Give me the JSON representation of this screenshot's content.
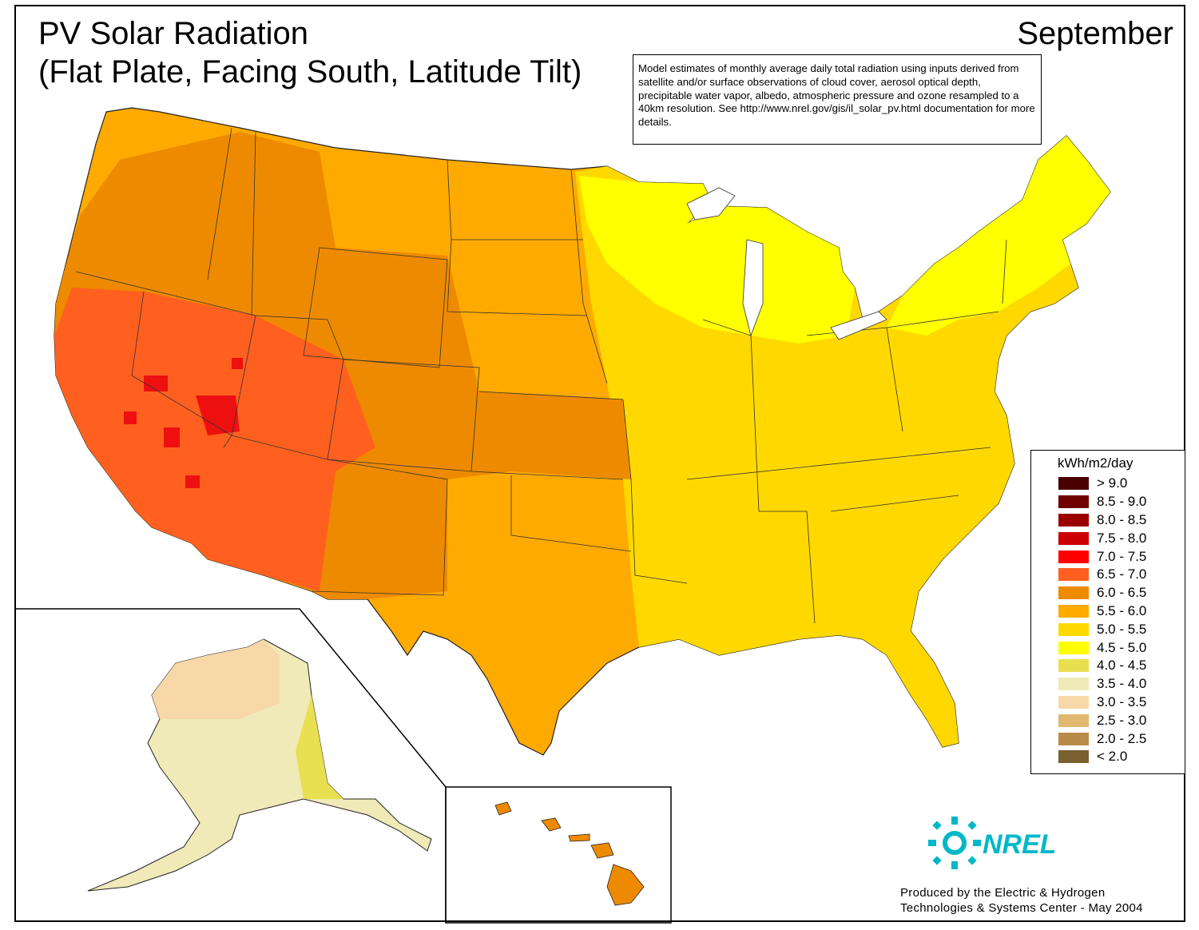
{
  "title": {
    "line1": "PV Solar Radiation",
    "line2": "(Flat Plate, Facing South, Latitude Tilt)"
  },
  "month": "September",
  "note": "Model estimates of monthly average daily total radiation using inputs derived from satellite and/or surface observations of cloud cover, aerosol optical depth, precipitable water vapor, albedo, atmospheric pressure and ozone resampled to a 40km resolution.  See http://www.nrel.gov/gis/il_solar_pv.html documentation for more details.",
  "legend": {
    "title": "kWh/m2/day",
    "items": [
      {
        "label": "> 9.0",
        "color": "#4a0000"
      },
      {
        "label": "8.5 - 9.0",
        "color": "#6e0000"
      },
      {
        "label": "8.0 - 8.5",
        "color": "#9a0000"
      },
      {
        "label": "7.5 - 8.0",
        "color": "#cc0000"
      },
      {
        "label": "7.0 - 7.5",
        "color": "#ff0000"
      },
      {
        "label": "6.5 - 7.0",
        "color": "#ff6020"
      },
      {
        "label": "6.0 - 6.5",
        "color": "#ee8a00"
      },
      {
        "label": "5.5 - 6.0",
        "color": "#ffaa00"
      },
      {
        "label": "5.0 - 5.5",
        "color": "#ffd800"
      },
      {
        "label": "4.5 - 5.0",
        "color": "#ffff00"
      },
      {
        "label": "4.0 - 4.5",
        "color": "#e8e050"
      },
      {
        "label": "3.5 - 4.0",
        "color": "#f0eab8"
      },
      {
        "label": "3.0 - 3.5",
        "color": "#f8d8a8"
      },
      {
        "label": "2.5 - 3.0",
        "color": "#e0b870"
      },
      {
        "label": "2.0 - 2.5",
        "color": "#b88c48"
      },
      {
        "label": "< 2.0",
        "color": "#7a6030"
      }
    ]
  },
  "credit": {
    "line1": "Produced by the Electric & Hydrogen",
    "line2": "Technologies & Systems Center - May 2004"
  },
  "logo": {
    "text": "NREL",
    "color": "#00b8c8",
    "icon": "nrel-sun-icon"
  }
}
